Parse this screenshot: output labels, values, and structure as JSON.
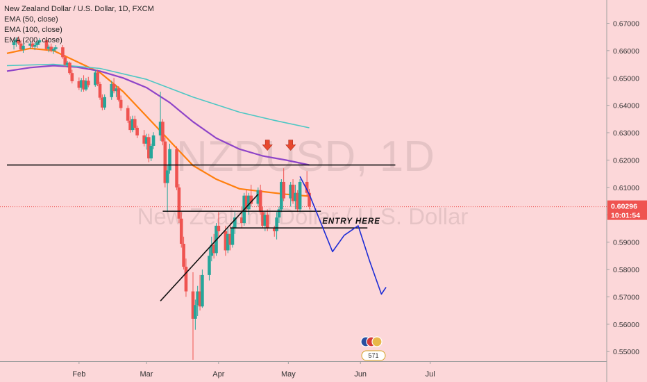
{
  "header": {
    "title": "New Zealand Dollar / U.S. Dollar, 1D, FXCM",
    "indicators": [
      "EMA (50, close)",
      "EMA (100, close)",
      "EMA (200, close)"
    ]
  },
  "watermark": {
    "symbol": "NZDUSD, 1D",
    "name": "New Zealand Dollar / U.S. Dollar"
  },
  "annotations": {
    "entry_label": "ENTRY HERE",
    "badge_count": "571"
  },
  "price_badge": {
    "price": "0.60296",
    "countdown": "10:01:54",
    "color": "#f23645"
  },
  "colors": {
    "background": "#fcd7d9",
    "up": "#26a69a",
    "down": "#ef5350",
    "ema50": "#ff7f0e",
    "ema100": "#8e44c8",
    "ema200": "#4dc7c4",
    "projection": "#1c2bd6",
    "arrow": "#e8482e"
  },
  "chart_data": {
    "type": "candlestick",
    "title": "New Zealand Dollar / U.S. Dollar, 1D, FXCM",
    "yticks": [
      0.55,
      0.56,
      0.57,
      0.58,
      0.59,
      0.6,
      0.61,
      0.62,
      0.63,
      0.64,
      0.65,
      0.66,
      0.67
    ],
    "ytick_labels": [
      "0.55000",
      "0.56000",
      "0.57000",
      "0.58000",
      "0.59000",
      "0.60000",
      "0.61000",
      "0.62000",
      "0.63000",
      "0.64000",
      "0.65000",
      "0.66000",
      "0.67000"
    ],
    "xtick_labels": [
      "Feb",
      "Mar",
      "Apr",
      "May",
      "Jun",
      "Jul"
    ],
    "xtick_days": [
      31,
      60,
      91,
      121,
      152,
      182
    ],
    "ylim": [
      0.5465,
      0.6785
    ],
    "xlim": [
      0,
      199
    ],
    "candles_ohlc": [
      [
        3,
        0.662,
        0.6638,
        0.6604,
        0.6632
      ],
      [
        4,
        0.6632,
        0.6648,
        0.6614,
        0.664
      ],
      [
        5,
        0.664,
        0.6652,
        0.662,
        0.6626
      ],
      [
        6,
        0.6626,
        0.6638,
        0.6598,
        0.6604
      ],
      [
        7,
        0.6604,
        0.6626,
        0.6592,
        0.6618
      ],
      [
        10,
        0.6618,
        0.6632,
        0.6606,
        0.6626
      ],
      [
        11,
        0.6626,
        0.6638,
        0.661,
        0.6614
      ],
      [
        12,
        0.6614,
        0.6628,
        0.6602,
        0.662
      ],
      [
        13,
        0.662,
        0.6636,
        0.661,
        0.663
      ],
      [
        14,
        0.663,
        0.6646,
        0.662,
        0.6638
      ],
      [
        17,
        0.6638,
        0.6648,
        0.66,
        0.6606
      ],
      [
        18,
        0.6606,
        0.6622,
        0.6594,
        0.6614
      ],
      [
        19,
        0.6614,
        0.6626,
        0.6594,
        0.66
      ],
      [
        20,
        0.66,
        0.6612,
        0.6588,
        0.6606
      ],
      [
        21,
        0.6606,
        0.662,
        0.6596,
        0.6612
      ],
      [
        24,
        0.6612,
        0.662,
        0.657,
        0.6576
      ],
      [
        25,
        0.6576,
        0.6584,
        0.654,
        0.6548
      ],
      [
        26,
        0.6548,
        0.6562,
        0.6538,
        0.6556
      ],
      [
        27,
        0.6556,
        0.656,
        0.6512,
        0.6518
      ],
      [
        28,
        0.6518,
        0.653,
        0.648,
        0.6488
      ],
      [
        31,
        0.6488,
        0.6502,
        0.6456,
        0.6464
      ],
      [
        32,
        0.6464,
        0.65,
        0.645,
        0.6492
      ],
      [
        33,
        0.6492,
        0.651,
        0.645,
        0.6458
      ],
      [
        34,
        0.6458,
        0.65,
        0.6452,
        0.649
      ],
      [
        35,
        0.649,
        0.6504,
        0.6466,
        0.6474
      ],
      [
        38,
        0.6474,
        0.653,
        0.6468,
        0.652
      ],
      [
        39,
        0.652,
        0.653,
        0.647,
        0.6478
      ],
      [
        40,
        0.6478,
        0.6486,
        0.642,
        0.6428
      ],
      [
        41,
        0.6428,
        0.644,
        0.6382,
        0.6392
      ],
      [
        42,
        0.6392,
        0.644,
        0.6384,
        0.643
      ],
      [
        45,
        0.643,
        0.649,
        0.642,
        0.6478
      ],
      [
        46,
        0.6478,
        0.65,
        0.6444,
        0.6452
      ],
      [
        47,
        0.6452,
        0.6472,
        0.643,
        0.6462
      ],
      [
        48,
        0.6462,
        0.647,
        0.6414,
        0.642
      ],
      [
        49,
        0.642,
        0.6436,
        0.638,
        0.639
      ],
      [
        52,
        0.639,
        0.64,
        0.6336,
        0.6344
      ],
      [
        53,
        0.6344,
        0.636,
        0.63,
        0.631
      ],
      [
        54,
        0.631,
        0.6362,
        0.6302,
        0.635
      ],
      [
        55,
        0.635,
        0.6362,
        0.631,
        0.6318
      ],
      [
        56,
        0.6318,
        0.6326,
        0.628,
        0.629
      ],
      [
        59,
        0.629,
        0.631,
        0.625,
        0.626
      ],
      [
        60,
        0.626,
        0.6296,
        0.6238,
        0.6284
      ],
      [
        61,
        0.6284,
        0.6296,
        0.6192,
        0.6206
      ],
      [
        62,
        0.6206,
        0.626,
        0.6196,
        0.6252
      ],
      [
        63,
        0.6252,
        0.6302,
        0.624,
        0.629
      ],
      [
        66,
        0.629,
        0.645,
        0.627,
        0.634
      ],
      [
        67,
        0.634,
        0.635,
        0.6254,
        0.6268
      ],
      [
        68,
        0.6268,
        0.6282,
        0.61,
        0.6116
      ],
      [
        69,
        0.6116,
        0.618,
        0.601,
        0.6162
      ],
      [
        70,
        0.6162,
        0.626,
        0.615,
        0.624
      ],
      [
        73,
        0.624,
        0.625,
        0.609,
        0.61
      ],
      [
        74,
        0.61,
        0.6112,
        0.597,
        0.5986
      ],
      [
        75,
        0.5986,
        0.601,
        0.588,
        0.5894
      ],
      [
        76,
        0.5894,
        0.592,
        0.58,
        0.581
      ],
      [
        77,
        0.581,
        0.584,
        0.57,
        0.572
      ],
      [
        80,
        0.572,
        0.579,
        0.547,
        0.562
      ],
      [
        81,
        0.562,
        0.569,
        0.558,
        0.567
      ],
      [
        82,
        0.567,
        0.574,
        0.563,
        0.572
      ],
      [
        83,
        0.572,
        0.578,
        0.565,
        0.5665
      ],
      [
        84,
        0.5665,
        0.58,
        0.566,
        0.578
      ],
      [
        87,
        0.578,
        0.588,
        0.576,
        0.585
      ],
      [
        88,
        0.585,
        0.592,
        0.583,
        0.589
      ],
      [
        89,
        0.589,
        0.593,
        0.584,
        0.586
      ],
      [
        90,
        0.586,
        0.597,
        0.585,
        0.596
      ],
      [
        91,
        0.596,
        0.601,
        0.592,
        0.594
      ],
      [
        94,
        0.594,
        0.596,
        0.585,
        0.587
      ],
      [
        95,
        0.587,
        0.595,
        0.586,
        0.593
      ],
      [
        96,
        0.593,
        0.597,
        0.587,
        0.589
      ],
      [
        97,
        0.589,
        0.596,
        0.588,
        0.595
      ],
      [
        98,
        0.595,
        0.601,
        0.593,
        0.599
      ],
      [
        101,
        0.599,
        0.603,
        0.595,
        0.597
      ],
      [
        102,
        0.597,
        0.608,
        0.596,
        0.607
      ],
      [
        103,
        0.607,
        0.609,
        0.601,
        0.602
      ],
      [
        104,
        0.602,
        0.608,
        0.6,
        0.607
      ],
      [
        105,
        0.607,
        0.611,
        0.603,
        0.604
      ],
      [
        108,
        0.604,
        0.61,
        0.603,
        0.609
      ],
      [
        109,
        0.609,
        0.611,
        0.6,
        0.601
      ],
      [
        110,
        0.601,
        0.603,
        0.595,
        0.596
      ],
      [
        111,
        0.596,
        0.601,
        0.594,
        0.6
      ],
      [
        112,
        0.6,
        0.602,
        0.594,
        0.595
      ],
      [
        115,
        0.595,
        0.596,
        0.592,
        0.594
      ],
      [
        116,
        0.594,
        0.601,
        0.591,
        0.599
      ],
      [
        117,
        0.599,
        0.603,
        0.597,
        0.602
      ],
      [
        118,
        0.602,
        0.613,
        0.601,
        0.612
      ],
      [
        119,
        0.612,
        0.617,
        0.605,
        0.606
      ],
      [
        122,
        0.606,
        0.612,
        0.603,
        0.611
      ],
      [
        123,
        0.611,
        0.613,
        0.604,
        0.605
      ],
      [
        124,
        0.605,
        0.611,
        0.602,
        0.608
      ],
      [
        125,
        0.608,
        0.609,
        0.601,
        0.602
      ],
      [
        126,
        0.602,
        0.613,
        0.601,
        0.612
      ],
      [
        129,
        0.612,
        0.616,
        0.607,
        0.608
      ],
      [
        130,
        0.608,
        0.6095,
        0.602,
        0.603
      ]
    ],
    "series": [
      {
        "name": "EMA (50, close)",
        "values": [
          [
            0,
            0.659
          ],
          [
            10,
            0.6608
          ],
          [
            20,
            0.66
          ],
          [
            30,
            0.656
          ],
          [
            40,
            0.652
          ],
          [
            50,
            0.645
          ],
          [
            60,
            0.636
          ],
          [
            70,
            0.627
          ],
          [
            80,
            0.618
          ],
          [
            90,
            0.613
          ],
          [
            100,
            0.6095
          ],
          [
            110,
            0.6085
          ],
          [
            120,
            0.6075
          ],
          [
            130,
            0.6068
          ]
        ]
      },
      {
        "name": "EMA (100, close)",
        "values": [
          [
            0,
            0.6525
          ],
          [
            10,
            0.6538
          ],
          [
            20,
            0.6545
          ],
          [
            30,
            0.654
          ],
          [
            40,
            0.6525
          ],
          [
            50,
            0.65
          ],
          [
            60,
            0.6465
          ],
          [
            70,
            0.641
          ],
          [
            80,
            0.634
          ],
          [
            90,
            0.628
          ],
          [
            100,
            0.624
          ],
          [
            110,
            0.6215
          ],
          [
            120,
            0.62
          ],
          [
            130,
            0.6182
          ]
        ]
      },
      {
        "name": "EMA (200, close)",
        "values": [
          [
            0,
            0.6545
          ],
          [
            20,
            0.655
          ],
          [
            40,
            0.6535
          ],
          [
            60,
            0.6495
          ],
          [
            80,
            0.643
          ],
          [
            100,
            0.6375
          ],
          [
            115,
            0.6345
          ],
          [
            130,
            0.6318
          ]
        ]
      }
    ],
    "horizontal_lines": [
      {
        "y": 0.6182,
        "x_from": 0,
        "x_to": 167
      },
      {
        "y": 0.6013,
        "x_from": 67,
        "x_to": 135
      },
      {
        "y": 0.5952,
        "x_from": 96,
        "x_to": 155
      }
    ],
    "trend_line": {
      "points": [
        [
          66,
          0.5685
        ],
        [
          108,
          0.6075
        ]
      ]
    },
    "projection_path": [
      [
        126,
        0.614
      ],
      [
        130,
        0.6075
      ],
      [
        135,
        0.597
      ],
      [
        140,
        0.5865
      ],
      [
        145,
        0.5925
      ],
      [
        151,
        0.596
      ],
      [
        156,
        0.583
      ],
      [
        161,
        0.571
      ],
      [
        163,
        0.5735
      ]
    ],
    "down_arrows": [
      [
        112,
        0.6243
      ],
      [
        122,
        0.6243
      ]
    ],
    "current_price": 0.60296
  }
}
